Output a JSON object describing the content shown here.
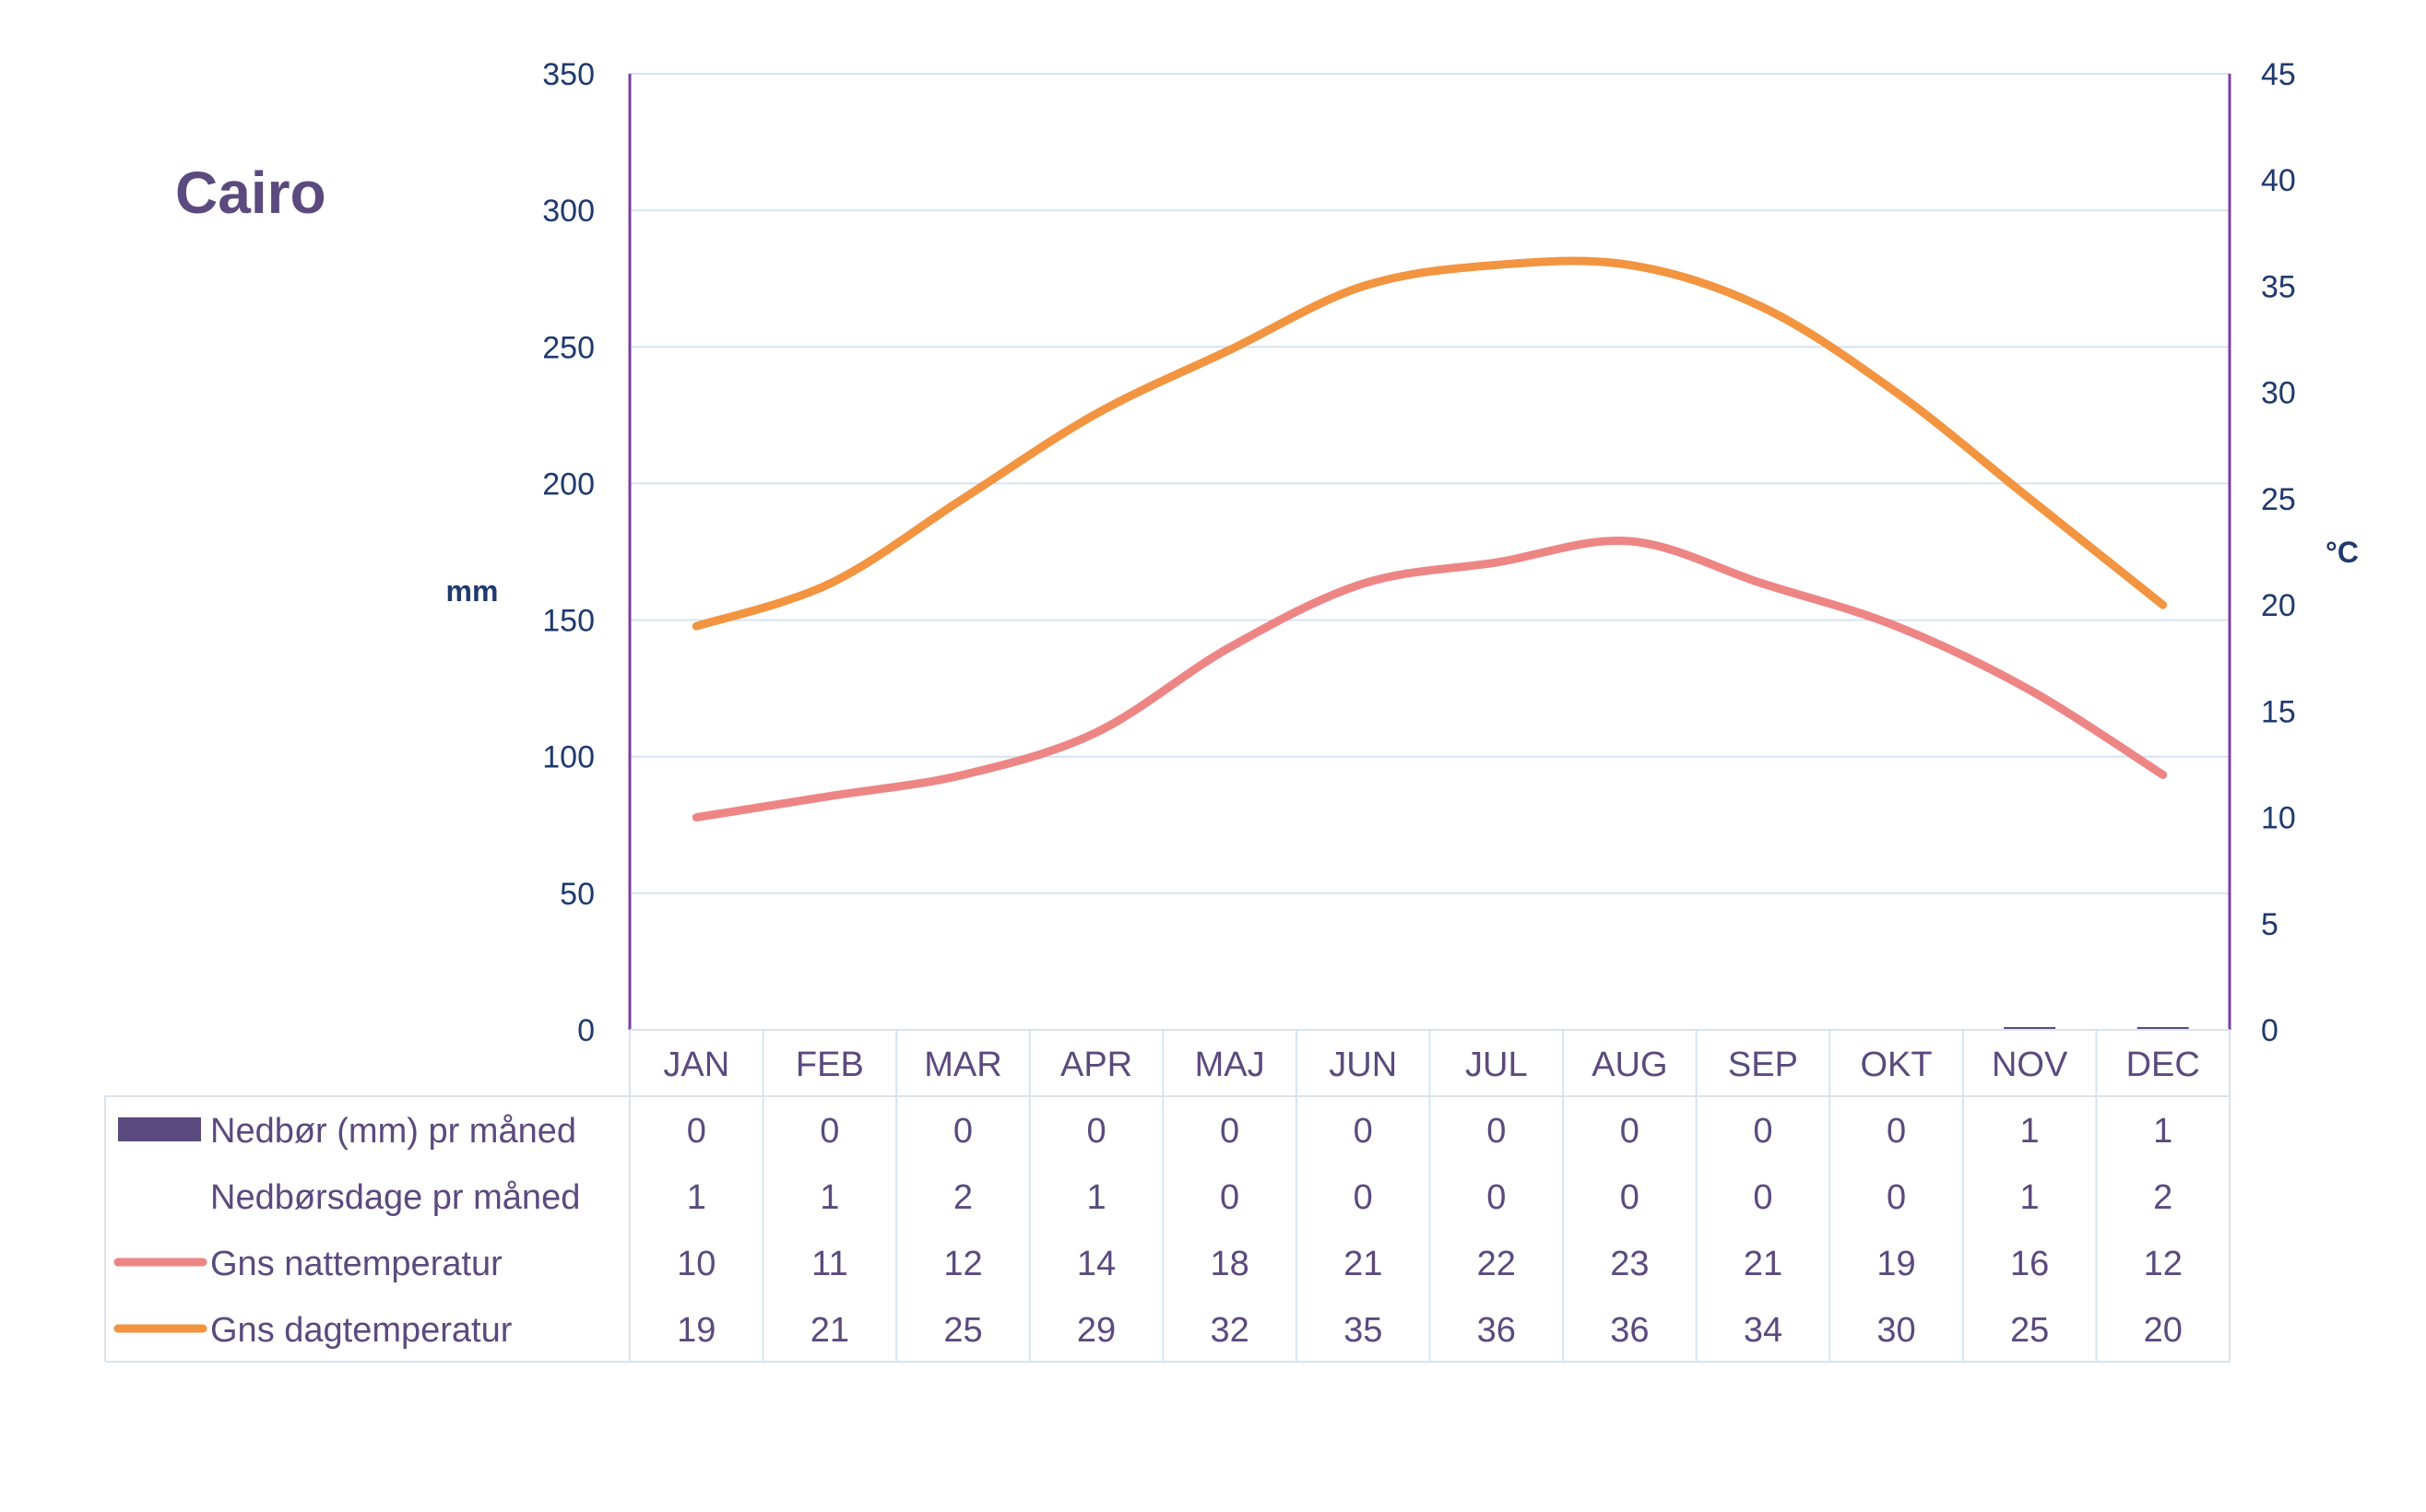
{
  "chart_data": {
    "type": "line",
    "title": "Cairo",
    "ylabel_left": "mm",
    "ylabel_right": "°C",
    "ylim_left": [
      0,
      350
    ],
    "ylim_right": [
      0,
      45
    ],
    "left_ticks": [
      "0",
      "50",
      "100",
      "150",
      "200",
      "250",
      "300",
      "350"
    ],
    "right_ticks": [
      "0",
      "5",
      "10",
      "15",
      "20",
      "25",
      "30",
      "35",
      "40",
      "45"
    ],
    "categories": [
      "JAN",
      "FEB",
      "MAR",
      "APR",
      "MAJ",
      "JUN",
      "JUL",
      "AUG",
      "SEP",
      "OKT",
      "NOV",
      "DEC"
    ],
    "grid": true,
    "series": [
      {
        "name": "Nedbør (mm) pr måned",
        "type": "bar",
        "axis": "left",
        "color": "#5b4a7e",
        "values": [
          0,
          0,
          0,
          0,
          0,
          0,
          0,
          0,
          0,
          0,
          1,
          1
        ]
      },
      {
        "name": "Nedbørsdage pr måned",
        "type": "table-only",
        "values": [
          1,
          1,
          2,
          1,
          0,
          0,
          0,
          0,
          0,
          0,
          1,
          2
        ]
      },
      {
        "name": "Gns nattemperatur",
        "type": "line",
        "axis": "right",
        "color": "#ee8585",
        "values": [
          10,
          11,
          12,
          14,
          18,
          21,
          22,
          23,
          21,
          19,
          16,
          12
        ]
      },
      {
        "name": "Gns dagtemperatur",
        "type": "line",
        "axis": "right",
        "color": "#f29440",
        "values": [
          19,
          21,
          25,
          29,
          32,
          35,
          36,
          36,
          34,
          30,
          25,
          20
        ]
      }
    ],
    "colors": {
      "axis": "#7a3fa0",
      "grid": "#d6e4ef",
      "tick_text": "#1f3a6e",
      "table_text": "#5b4a7e",
      "table_border": "#d6e4ef"
    }
  }
}
